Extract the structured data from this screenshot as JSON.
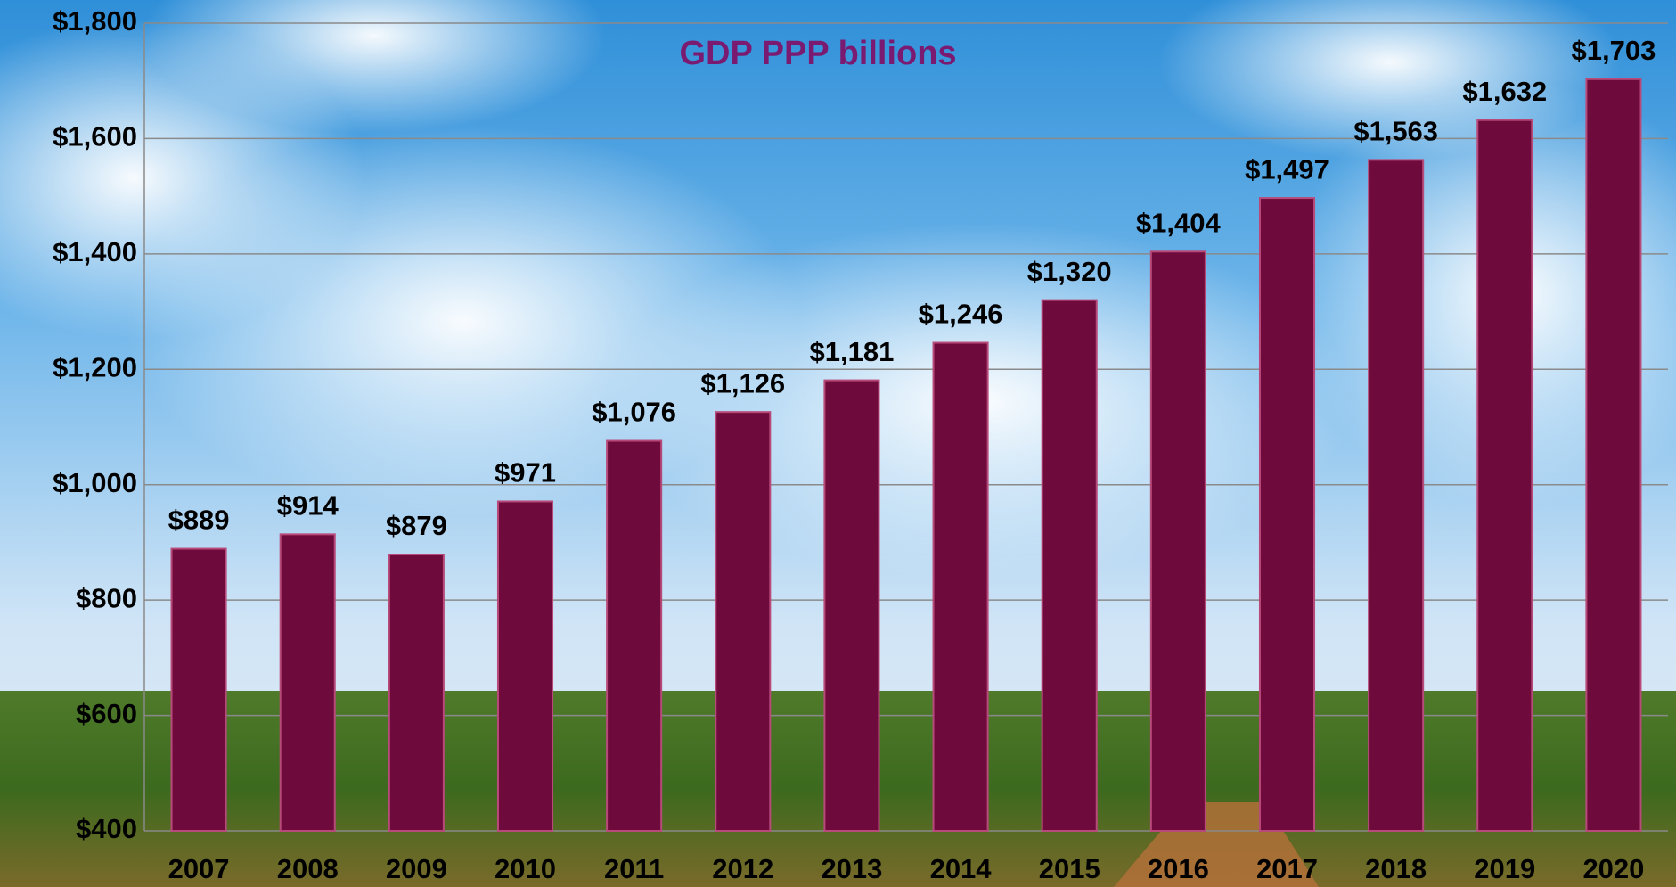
{
  "chart_data": {
    "type": "bar",
    "title": "GDP PPP billions",
    "categories": [
      "2007",
      "2008",
      "2009",
      "2010",
      "2011",
      "2012",
      "2013",
      "2014",
      "2015",
      "2016",
      "2017",
      "2018",
      "2019",
      "2020"
    ],
    "values": [
      889,
      914,
      879,
      971,
      1076,
      1126,
      1181,
      1246,
      1320,
      1404,
      1497,
      1563,
      1632,
      1703
    ],
    "value_labels": [
      "$889",
      "$914",
      "$879",
      "$971",
      "$1,076",
      "$1,126",
      "$1,181",
      "$1,246",
      "$1,320",
      "$1,404",
      "$1,497",
      "$1,563",
      "$1,632",
      "$1,703"
    ],
    "color": "#6e0b3c",
    "ylim": [
      400,
      1800
    ],
    "yticks": [
      {
        "value": 400,
        "label": "$400"
      },
      {
        "value": 600,
        "label": "$600"
      },
      {
        "value": 800,
        "label": "$800"
      },
      {
        "value": 1000,
        "label": "$1,000"
      },
      {
        "value": 1200,
        "label": "$1,200"
      },
      {
        "value": 1400,
        "label": "$1,400"
      },
      {
        "value": 1600,
        "label": "$1,600"
      },
      {
        "value": 1800,
        "label": "$1,800"
      }
    ],
    "grid": true
  }
}
